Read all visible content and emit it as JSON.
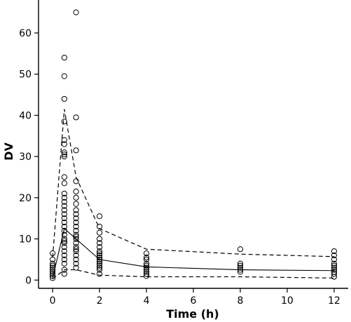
{
  "chart_data": {
    "type": "scatter",
    "xlabel": "Time (h)",
    "ylabel": "DV",
    "xlim": [
      -0.6,
      12.6
    ],
    "ylim": [
      -2,
      68
    ],
    "xticks": [
      0,
      2,
      4,
      6,
      8,
      10,
      12
    ],
    "yticks": [
      0,
      10,
      20,
      30,
      40,
      50,
      60
    ],
    "grid": false,
    "observed": [
      {
        "x": 0,
        "values": [
          0.5,
          1,
          1.5,
          2,
          2.5,
          3,
          3.5,
          4,
          5,
          6.5
        ]
      },
      {
        "x": 0.5,
        "values": [
          1.5,
          2.5,
          4,
          5,
          6,
          7,
          8,
          9,
          9.5,
          10,
          11,
          12,
          13,
          14,
          15,
          16,
          17,
          18,
          19,
          20,
          21,
          23.5,
          25,
          30,
          30.5,
          31,
          33,
          34,
          38.5,
          44,
          49.5,
          54
        ]
      },
      {
        "x": 1,
        "values": [
          3,
          4,
          5,
          6,
          7,
          7.5,
          8,
          9,
          10,
          10.5,
          11,
          12,
          13,
          14,
          15,
          16,
          17,
          18.5,
          20,
          21.5,
          24,
          31.5,
          39.5,
          65
        ]
      },
      {
        "x": 2,
        "values": [
          1.5,
          2.5,
          3,
          3.5,
          4,
          4.5,
          5,
          5.5,
          6,
          6.5,
          7,
          8,
          9,
          10,
          11.5,
          13,
          15.5
        ]
      },
      {
        "x": 4,
        "values": [
          1,
          1.5,
          2,
          2.5,
          3,
          3.5,
          4,
          5,
          5.5,
          6.5
        ]
      },
      {
        "x": 8,
        "values": [
          2,
          2.5,
          3,
          3.5,
          4,
          7.5
        ]
      },
      {
        "x": 12,
        "values": [
          0.8,
          1.5,
          2,
          2.5,
          3,
          3.5,
          4,
          5,
          6,
          7
        ]
      }
    ],
    "median_line": {
      "x": [
        0,
        0.5,
        1,
        2,
        4,
        8,
        12
      ],
      "y": [
        0.5,
        12.5,
        10,
        5,
        3.2,
        2.5,
        2.3
      ]
    },
    "upper_band": {
      "x": [
        0,
        0.5,
        1,
        2,
        4,
        8,
        12
      ],
      "y": [
        5.5,
        41.5,
        25,
        12.5,
        7.5,
        6.3,
        5.7
      ]
    },
    "lower_band": {
      "x": [
        0,
        0.5,
        1,
        2,
        4,
        8,
        12
      ],
      "y": [
        0.3,
        2.5,
        2.5,
        1.2,
        0.8,
        0.8,
        0.5
      ]
    }
  }
}
